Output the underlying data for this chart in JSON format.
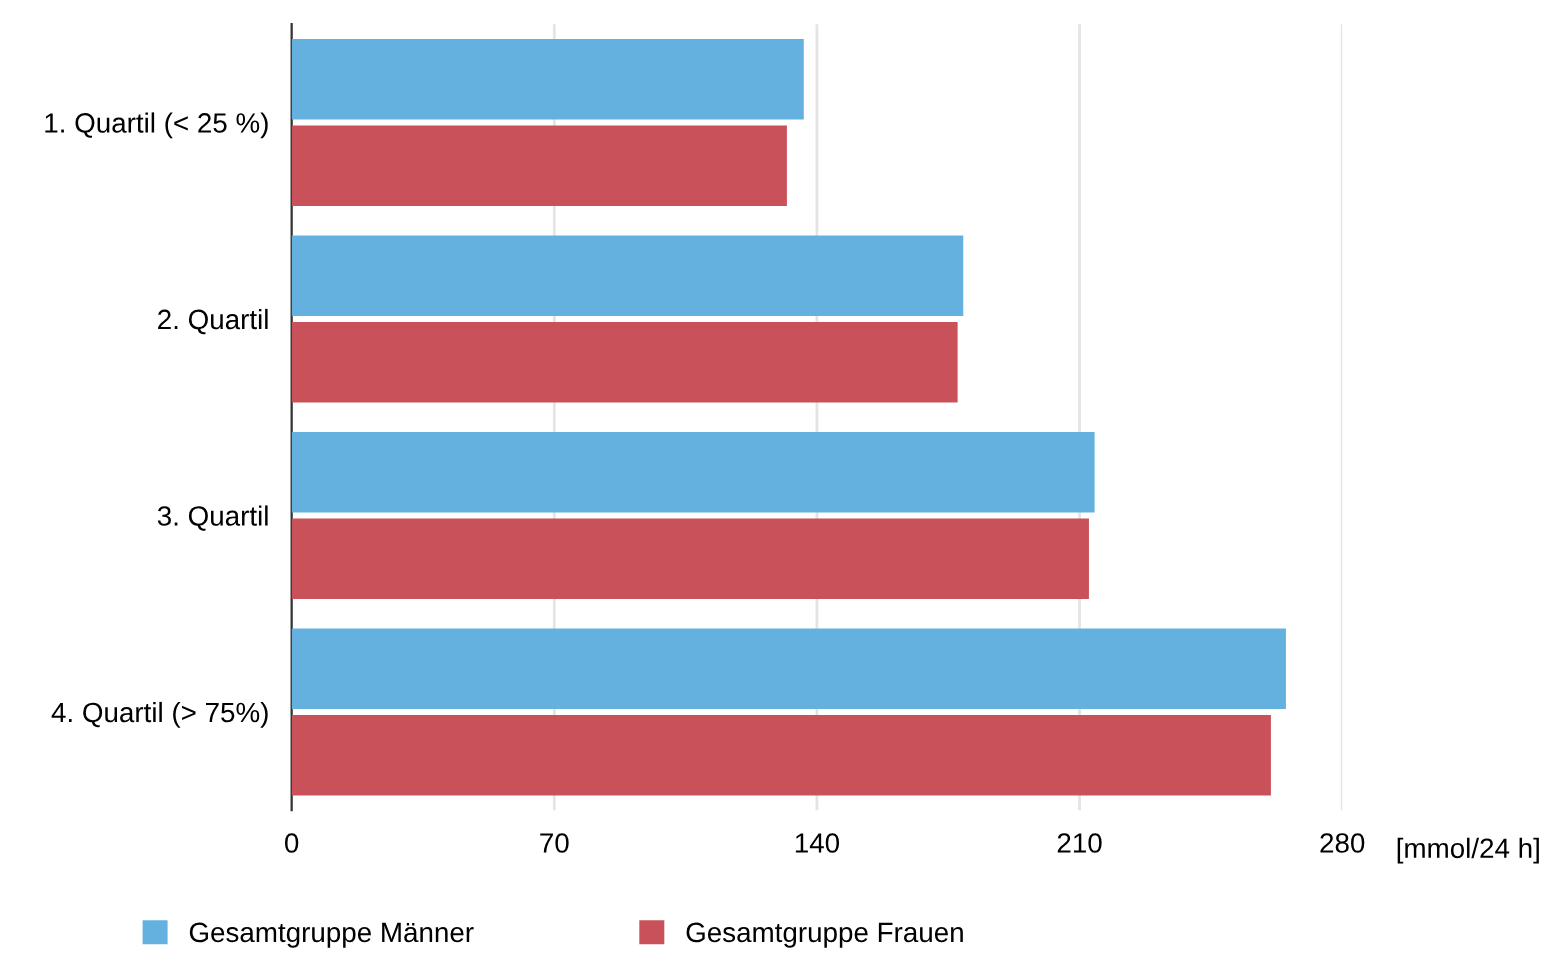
{
  "chart_data": {
    "type": "bar",
    "orientation": "horizontal",
    "categories": [
      "1. Quartil (< 25 %)",
      "2. Quartil",
      "3. Quartil",
      "4. Quartil (> 75%)"
    ],
    "series": [
      {
        "name": "Gesamtgruppe Männer",
        "color": "#64b1e0",
        "values": [
          136.5,
          179,
          214,
          265
        ]
      },
      {
        "name": "Gesamtgruppe Frauen",
        "color": "#c9525a",
        "values": [
          132,
          177.5,
          212.5,
          261
        ]
      }
    ],
    "xlabel": "[mmol/24 h]",
    "xlim": [
      0,
      280
    ],
    "xticks": [
      0,
      70,
      140,
      210,
      280
    ],
    "grid": "x",
    "legend": "bottom"
  }
}
